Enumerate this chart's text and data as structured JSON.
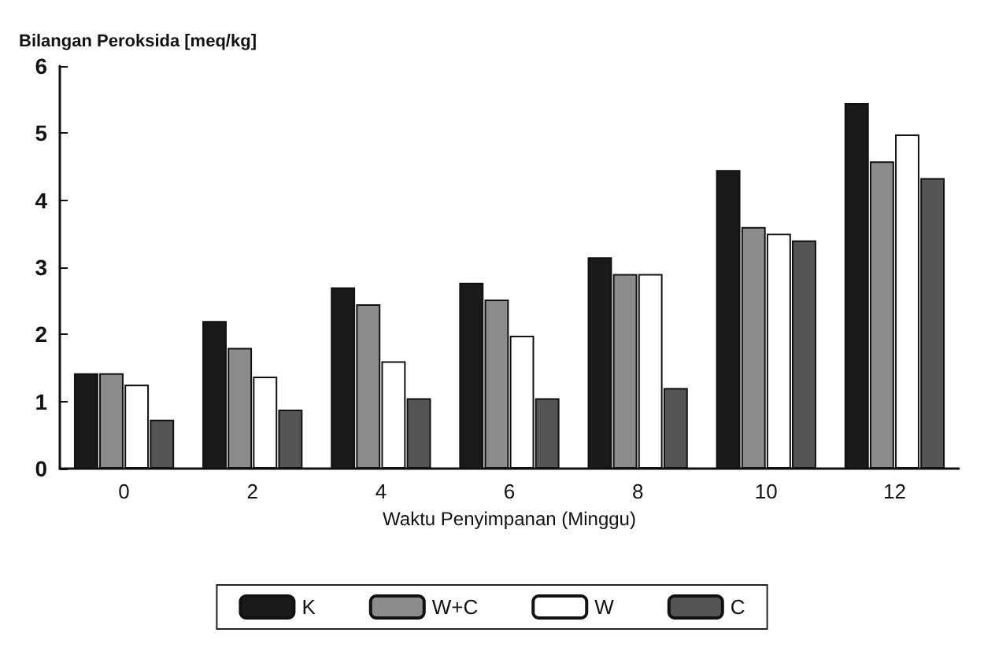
{
  "chart_data": {
    "type": "bar",
    "ylabel": "Bilangan Peroksida [meq/kg]",
    "xlabel": "Waktu Penyimpanan (Minggu)",
    "categories": [
      "0",
      "2",
      "4",
      "6",
      "8",
      "10",
      "12"
    ],
    "series": [
      {
        "name": "K",
        "color": "#1a1a1a",
        "values": [
          1.42,
          2.2,
          2.7,
          2.77,
          3.15,
          4.45,
          5.45
        ]
      },
      {
        "name": "W+C",
        "color": "#8c8c8c",
        "values": [
          1.42,
          1.8,
          2.45,
          2.52,
          2.9,
          3.6,
          4.58
        ]
      },
      {
        "name": "W",
        "color": "#ffffff",
        "values": [
          1.25,
          1.37,
          1.6,
          1.98,
          2.9,
          3.5,
          4.98
        ]
      },
      {
        "name": "C",
        "color": "#555555",
        "values": [
          0.73,
          0.88,
          1.05,
          1.05,
          1.2,
          3.4,
          4.33
        ]
      }
    ],
    "ylim": [
      0,
      6
    ],
    "yticks": [
      0,
      1,
      2,
      3,
      4,
      5,
      6
    ],
    "grid": false,
    "legend": "bottom"
  }
}
